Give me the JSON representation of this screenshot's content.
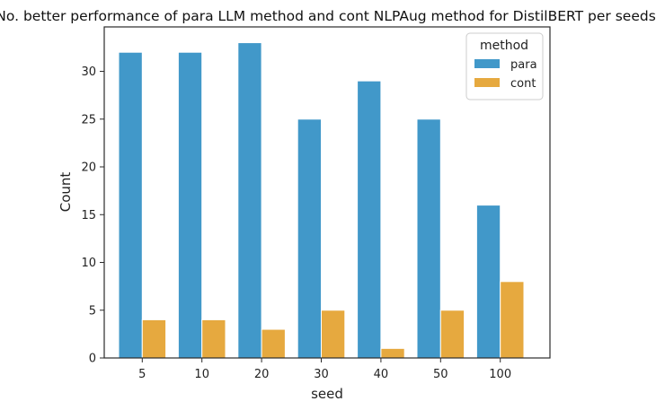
{
  "chart_data": {
    "type": "bar",
    "title": "No. better performance of para LLM method and cont NLPAug method for DistilBERT per seeds.",
    "xlabel": "seed",
    "ylabel": "Count",
    "categories": [
      "5",
      "10",
      "20",
      "30",
      "40",
      "50",
      "100"
    ],
    "series": [
      {
        "name": "para",
        "values": [
          32,
          32,
          33,
          25,
          29,
          25,
          16
        ],
        "color": "#4198c9"
      },
      {
        "name": "cont",
        "values": [
          4,
          4,
          3,
          5,
          1,
          5,
          8
        ],
        "color": "#e6a93f"
      }
    ],
    "ylim": [
      0,
      34.65
    ],
    "yticks": [
      0,
      5,
      10,
      15,
      20,
      25,
      30
    ],
    "grid": false,
    "legend": {
      "title": "method",
      "position": "top-right"
    }
  }
}
